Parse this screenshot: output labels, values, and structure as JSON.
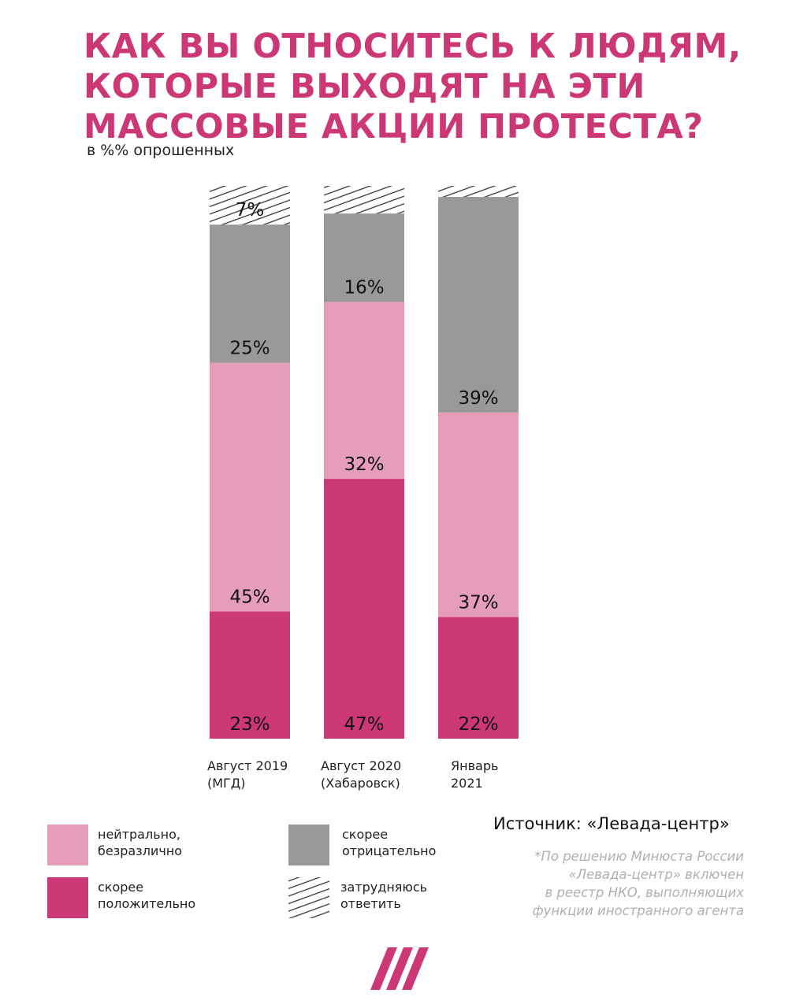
{
  "header": {
    "title_lines": [
      "КАК ВЫ ОТНОСИТЕСЬ К ЛЮДЯМ,",
      "КОТОРЫЕ ВЫХОДЯТ НА ЭТИ",
      "МАССОВЫЕ АКЦИИ ПРОТЕСТА?"
    ],
    "subtitle": "в %% опрошенных"
  },
  "chart_data": {
    "type": "bar",
    "stacked": true,
    "categories": [
      {
        "line1": "Август 2019",
        "line2": "(МГД)"
      },
      {
        "line1": "Август 2020",
        "line2": "(Хабаровск)"
      },
      {
        "line1": "Январь",
        "line2": "2021"
      }
    ],
    "series": [
      {
        "key": "positive",
        "name": "скорее положительно",
        "color": "#cc3875",
        "values": [
          23,
          47,
          22
        ]
      },
      {
        "key": "neutral",
        "name": "нейтрально, безразлично",
        "color": "#e59dba",
        "values": [
          45,
          32,
          37
        ]
      },
      {
        "key": "negative",
        "name": "скорее отрицательно",
        "color": "#999999",
        "values": [
          25,
          16,
          39
        ]
      },
      {
        "key": "dontknow",
        "name": "затрудняюсь ответить",
        "color": "hatched",
        "values": [
          7,
          5,
          2
        ]
      }
    ],
    "data_labels": [
      [
        "23%",
        "45%",
        "25%",
        "7%"
      ],
      [
        "47%",
        "32%",
        "16%",
        ""
      ],
      [
        "22%",
        "37%",
        "39%",
        ""
      ]
    ],
    "ylim": [
      0,
      100
    ]
  },
  "legend": [
    {
      "key": "neutral",
      "line1": "нейтрально,",
      "line2": "безразлично",
      "color": "#e59dba"
    },
    {
      "key": "negative",
      "line1": "скорее",
      "line2": "отрицательно",
      "color": "#999999"
    },
    {
      "key": "positive",
      "line1": "скорее",
      "line2": "положительно",
      "color": "#cc3875"
    },
    {
      "key": "dontknow",
      "line1": "затрудняюсь",
      "line2": "ответить",
      "color": "hatched"
    }
  ],
  "source": "Источник: «Левада-центр»",
  "footnote_lines": [
    "*По решению Минюста России",
    "«Левада-центр» включен",
    "в реестр НКО, выполняющих",
    "функции иностранного агента"
  ],
  "colors": {
    "accent": "#cc3875"
  },
  "logo": {
    "icon": "dozhd-logo-icon"
  }
}
